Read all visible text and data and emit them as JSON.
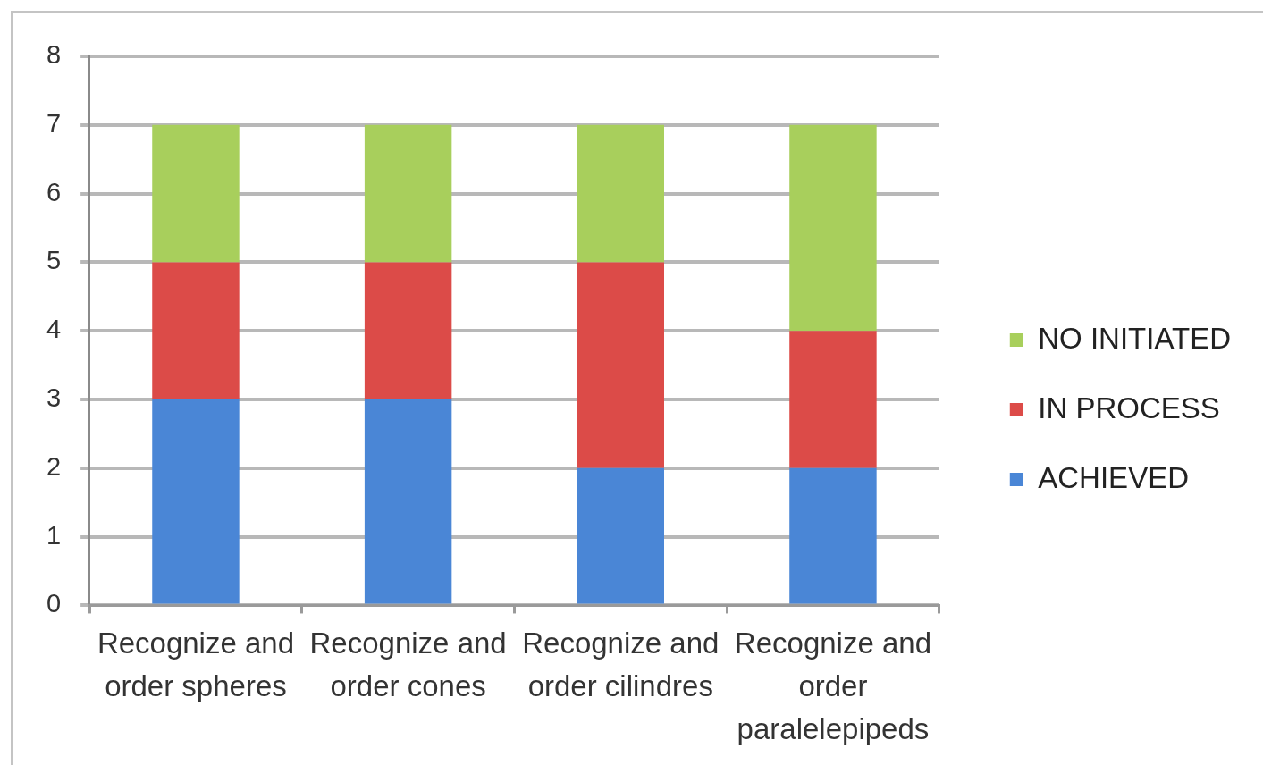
{
  "chart_data": {
    "type": "bar",
    "stacked": true,
    "categories": [
      "Recognize and order spheres",
      "Recognize and order cones",
      "Recognize and order cilindres",
      "Recognize and order paralelepipeds"
    ],
    "series": [
      {
        "name": "ACHIEVED",
        "color": "#4a86d6",
        "values": [
          3,
          3,
          2,
          2
        ]
      },
      {
        "name": "IN PROCESS",
        "color": "#dc4b48",
        "values": [
          2,
          2,
          3,
          2
        ]
      },
      {
        "name": "NO INITIATED",
        "color": "#a8cf5c",
        "values": [
          2,
          2,
          2,
          3
        ]
      }
    ],
    "ylim": [
      0,
      8
    ],
    "yticks": [
      0,
      1,
      2,
      3,
      4,
      5,
      6,
      7,
      8
    ],
    "grid": "y",
    "legend": "right"
  }
}
